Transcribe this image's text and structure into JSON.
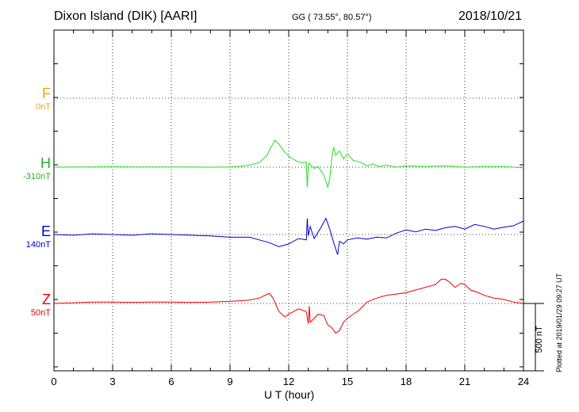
{
  "header": {
    "title": "Dixon Island (DIK)  [AARI]",
    "coords": "GG ( 73.55°,  80.57°)",
    "date": "2018/10/21"
  },
  "footer": {
    "plotted": "Plotted at 2019/01/29 09:27 UT"
  },
  "chart_data": {
    "type": "line",
    "xlabel": "U T (hour)",
    "xlim": [
      0,
      24
    ],
    "xticks": [
      "0",
      "3",
      "6",
      "9",
      "12",
      "15",
      "18",
      "21",
      "24"
    ],
    "scale_bar_label": "500 nT",
    "grid": true,
    "series": [
      {
        "name": "F",
        "offset_label": "0nT",
        "color": "#f5a800",
        "baseline_nT": 0,
        "x": [],
        "values": []
      },
      {
        "name": "H",
        "offset_label": "-310nT",
        "color": "#22e022",
        "baseline_nT": 0,
        "x": [
          0,
          1,
          2,
          3,
          4,
          5,
          6,
          7,
          8,
          9,
          9.5,
          10,
          10.5,
          10.9,
          11.1,
          11.3,
          11.5,
          11.8,
          12.1,
          12.4,
          12.7,
          12.9,
          12.95,
          13.0,
          13.05,
          13.1,
          13.3,
          13.5,
          13.8,
          14.0,
          14.1,
          14.2,
          14.3,
          14.4,
          14.6,
          14.8,
          15.0,
          15.3,
          15.6,
          16.0,
          16.3,
          16.6,
          17.0,
          17.5,
          18.0,
          19.0,
          20.0,
          21.0,
          22.0,
          23.0,
          24.0
        ],
        "values": [
          0,
          2,
          1,
          3,
          2,
          1,
          2,
          1,
          0,
          2,
          6,
          15,
          35,
          90,
          150,
          200,
          170,
          110,
          70,
          45,
          30,
          40,
          -150,
          10,
          30,
          20,
          -10,
          5,
          -60,
          -150,
          -80,
          60,
          150,
          90,
          120,
          60,
          100,
          50,
          40,
          10,
          25,
          5,
          15,
          0,
          10,
          5,
          10,
          0,
          5,
          5,
          -5
        ]
      },
      {
        "name": "E",
        "offset_label": "140nT",
        "color": "#0000cc",
        "baseline_nT": 0,
        "x": [
          0,
          1,
          2,
          3,
          4,
          5,
          6,
          7,
          8,
          9,
          10,
          10.5,
          11.0,
          11.5,
          12.0,
          12.5,
          12.9,
          12.95,
          13.0,
          13.1,
          13.3,
          13.6,
          13.9,
          14.1,
          14.3,
          14.5,
          14.6,
          14.8,
          15.0,
          15.5,
          16.0,
          16.5,
          17.0,
          17.5,
          18.0,
          18.5,
          19.0,
          19.5,
          20.0,
          20.5,
          21.0,
          21.5,
          22.0,
          22.5,
          23.0,
          23.5,
          24.0
        ],
        "values": [
          0,
          -5,
          5,
          0,
          -5,
          5,
          0,
          -5,
          -10,
          -20,
          -20,
          -40,
          -60,
          -90,
          -70,
          -30,
          -40,
          120,
          -10,
          60,
          -30,
          40,
          120,
          40,
          -60,
          -150,
          -50,
          -70,
          -40,
          -25,
          -35,
          -20,
          -25,
          10,
          35,
          20,
          40,
          30,
          50,
          60,
          40,
          75,
          60,
          40,
          55,
          65,
          100
        ]
      },
      {
        "name": "Z",
        "offset_label": "50nT",
        "color": "#ee0000",
        "baseline_nT": 0,
        "x": [
          0,
          1,
          2,
          3,
          4,
          5,
          6,
          7,
          8,
          9,
          9.5,
          10,
          10.5,
          11.0,
          11.2,
          11.5,
          11.8,
          12.0,
          12.5,
          12.9,
          13.0,
          13.05,
          13.1,
          13.5,
          13.8,
          14.0,
          14.2,
          14.4,
          14.6,
          14.8,
          15.0,
          15.3,
          15.6,
          16.0,
          16.5,
          17.0,
          17.5,
          18.0,
          18.5,
          19.0,
          19.5,
          19.8,
          20.0,
          20.2,
          20.5,
          20.8,
          21.0,
          21.3,
          21.7,
          22.0,
          22.5,
          23.0,
          23.5,
          24.0
        ],
        "values": [
          0,
          5,
          10,
          10,
          8,
          10,
          10,
          8,
          10,
          15,
          20,
          25,
          40,
          75,
          40,
          -60,
          -100,
          -80,
          -40,
          -60,
          -150,
          -20,
          -140,
          -80,
          -90,
          -160,
          -180,
          -220,
          -200,
          -140,
          -110,
          -80,
          -50,
          10,
          40,
          60,
          70,
          80,
          100,
          120,
          140,
          180,
          180,
          160,
          120,
          150,
          140,
          100,
          80,
          60,
          40,
          30,
          10,
          0
        ]
      }
    ]
  }
}
